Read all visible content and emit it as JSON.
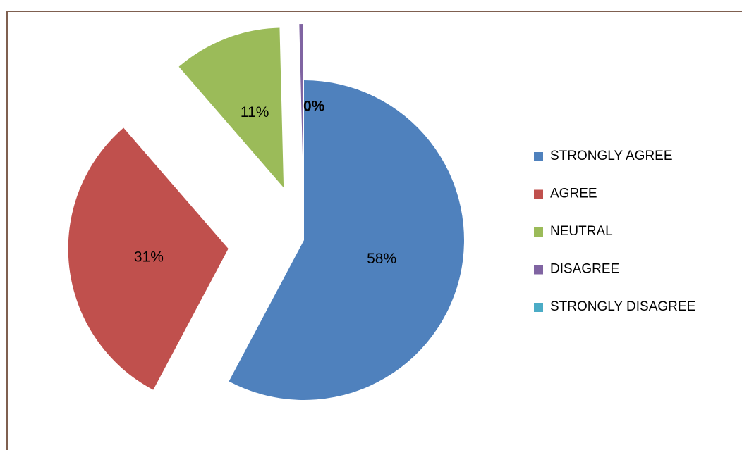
{
  "chart_data": {
    "type": "pie",
    "categories": [
      "STRONGLY AGREE",
      "AGREE",
      "NEUTRAL",
      "DISAGREE",
      "STRONGLY DISAGREE"
    ],
    "values": [
      58,
      31,
      11,
      0.4,
      0
    ],
    "value_labels": [
      "58%",
      "31%",
      "11%",
      "0%",
      null
    ],
    "colors": [
      "#4f81bd",
      "#c0504d",
      "#9bbb59",
      "#8064a2",
      "#4bacc6"
    ],
    "legend": "right"
  }
}
